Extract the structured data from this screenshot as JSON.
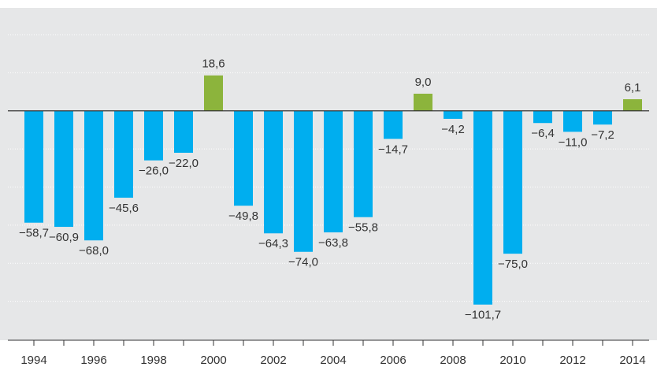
{
  "chart_data": {
    "type": "bar",
    "categories": [
      1994,
      null,
      1996,
      null,
      1998,
      null,
      2000,
      null,
      2002,
      null,
      2004,
      null,
      2006,
      null,
      2008,
      null,
      2010,
      null,
      2012,
      null,
      2014
    ],
    "values": [
      -58.7,
      -60.9,
      -68.0,
      -45.6,
      -26.0,
      -22.0,
      18.6,
      -49.8,
      -64.3,
      -74.0,
      -63.8,
      -55.8,
      -14.7,
      9.0,
      -4.2,
      -101.7,
      -75.0,
      -6.4,
      -11.0,
      -7.2,
      6.1
    ],
    "value_labels": [
      "−58,7",
      "−60,9",
      "−68,0",
      "−45,6",
      "−26,0",
      "−22,0",
      "18,6",
      "−49,8",
      "−64,3",
      "−74,0",
      "−63,8",
      "−55,8",
      "−14,7",
      "9,0",
      "−4,2",
      "−101,7",
      "−75,0",
      "−6,4",
      "−11,0",
      "−7,2",
      "6,1"
    ],
    "color_negative": "#00aeef",
    "color_positive": "#8cb43c",
    "ylim": [
      -120,
      40
    ],
    "yticks": [
      40,
      20,
      0,
      -20,
      -40,
      -60,
      -80,
      -100,
      -120
    ],
    "grid": true
  }
}
